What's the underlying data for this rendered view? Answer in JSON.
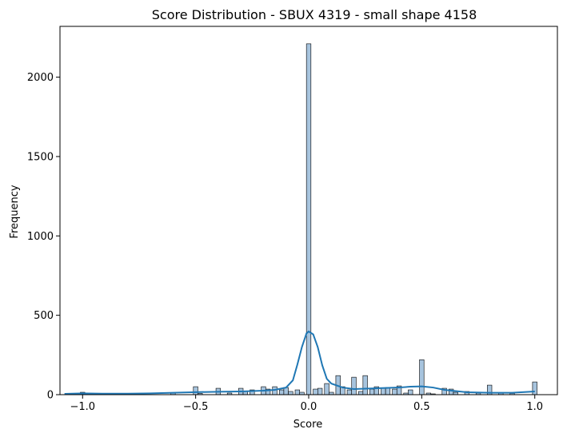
{
  "chart_data": {
    "type": "histogram",
    "title": "Score Distribution - SBUX 4319 - small shape 4158",
    "xlabel": "Score",
    "ylabel": "Frequency",
    "xlim": [
      -1.1,
      1.1
    ],
    "ylim": [
      0,
      2320
    ],
    "xticks": [
      -1.0,
      -0.5,
      0.0,
      0.5,
      1.0
    ],
    "xtick_labels": [
      "−1.0",
      "−0.5",
      "0.0",
      "0.5",
      "1.0"
    ],
    "yticks": [
      0,
      500,
      1000,
      1500,
      2000
    ],
    "ytick_labels": [
      "0",
      "500",
      "1000",
      "1500",
      "2000"
    ],
    "bin_width": 0.02,
    "bins": [
      {
        "x": -1.0,
        "count": 15
      },
      {
        "x": -0.6,
        "count": 12
      },
      {
        "x": -0.5,
        "count": 50
      },
      {
        "x": -0.48,
        "count": 8
      },
      {
        "x": -0.4,
        "count": 40
      },
      {
        "x": -0.35,
        "count": 10
      },
      {
        "x": -0.3,
        "count": 40
      },
      {
        "x": -0.28,
        "count": 20
      },
      {
        "x": -0.25,
        "count": 30
      },
      {
        "x": -0.2,
        "count": 50
      },
      {
        "x": -0.18,
        "count": 35
      },
      {
        "x": -0.15,
        "count": 50
      },
      {
        "x": -0.12,
        "count": 30
      },
      {
        "x": -0.1,
        "count": 45
      },
      {
        "x": -0.08,
        "count": 20
      },
      {
        "x": -0.05,
        "count": 30
      },
      {
        "x": -0.03,
        "count": 15
      },
      {
        "x": 0.0,
        "count": 2210
      },
      {
        "x": 0.03,
        "count": 35
      },
      {
        "x": 0.05,
        "count": 40
      },
      {
        "x": 0.08,
        "count": 70
      },
      {
        "x": 0.1,
        "count": 15
      },
      {
        "x": 0.13,
        "count": 120
      },
      {
        "x": 0.15,
        "count": 50
      },
      {
        "x": 0.18,
        "count": 30
      },
      {
        "x": 0.2,
        "count": 110
      },
      {
        "x": 0.23,
        "count": 20
      },
      {
        "x": 0.25,
        "count": 120
      },
      {
        "x": 0.28,
        "count": 35
      },
      {
        "x": 0.3,
        "count": 50
      },
      {
        "x": 0.33,
        "count": 40
      },
      {
        "x": 0.35,
        "count": 45
      },
      {
        "x": 0.38,
        "count": 35
      },
      {
        "x": 0.4,
        "count": 55
      },
      {
        "x": 0.43,
        "count": 10
      },
      {
        "x": 0.45,
        "count": 30
      },
      {
        "x": 0.5,
        "count": 220
      },
      {
        "x": 0.53,
        "count": 10
      },
      {
        "x": 0.55,
        "count": 5
      },
      {
        "x": 0.6,
        "count": 40
      },
      {
        "x": 0.63,
        "count": 35
      },
      {
        "x": 0.65,
        "count": 15
      },
      {
        "x": 0.7,
        "count": 20
      },
      {
        "x": 0.75,
        "count": 10
      },
      {
        "x": 0.8,
        "count": 60
      },
      {
        "x": 0.85,
        "count": 10
      },
      {
        "x": 0.9,
        "count": 8
      },
      {
        "x": 1.0,
        "count": 80
      }
    ],
    "kde_line": {
      "x": [
        -1.08,
        -1.0,
        -0.9,
        -0.8,
        -0.7,
        -0.6,
        -0.5,
        -0.4,
        -0.3,
        -0.2,
        -0.15,
        -0.1,
        -0.07,
        -0.05,
        -0.03,
        -0.01,
        0.0,
        0.02,
        0.04,
        0.06,
        0.08,
        0.1,
        0.15,
        0.2,
        0.3,
        0.4,
        0.45,
        0.5,
        0.55,
        0.6,
        0.7,
        0.8,
        0.9,
        1.0
      ],
      "y": [
        5,
        8,
        6,
        6,
        8,
        12,
        16,
        18,
        20,
        25,
        30,
        45,
        90,
        190,
        300,
        385,
        398,
        380,
        300,
        185,
        100,
        70,
        45,
        35,
        40,
        45,
        50,
        52,
        45,
        30,
        15,
        12,
        12,
        20
      ]
    },
    "colors": {
      "bar_fill": "#a7c4de",
      "bar_edge": "#000000",
      "kde": "#1f77b4"
    }
  }
}
